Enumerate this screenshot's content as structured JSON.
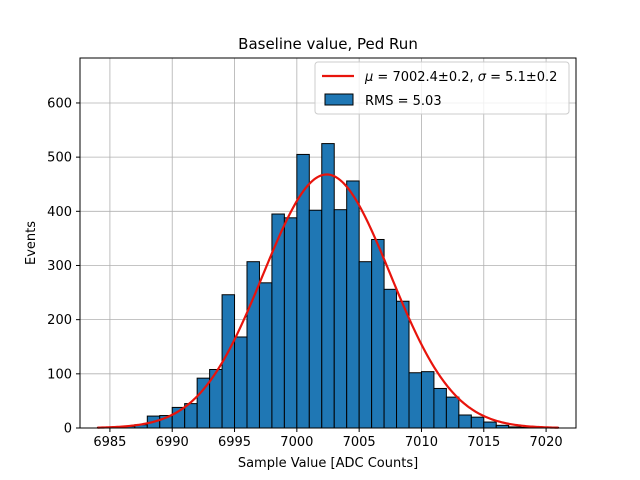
{
  "chart_data": {
    "type": "bar",
    "title": "Baseline value, Ped Run",
    "xlabel": "Sample Value [ADC Counts]",
    "ylabel": "Events",
    "xlim": [
      6982.6,
      7022.4
    ],
    "ylim": [
      0,
      683
    ],
    "xticks": [
      6985,
      6990,
      6995,
      7000,
      7005,
      7010,
      7015,
      7020
    ],
    "yticks": [
      0,
      100,
      200,
      300,
      400,
      500,
      600
    ],
    "grid": true,
    "legend_position": "top-right",
    "bar_color": "#1f77b4",
    "fit_color": "#e8140c",
    "bins": {
      "edges": [
        6984,
        6985,
        6986,
        6987,
        6988,
        6989,
        6990,
        6991,
        6992,
        6993,
        6994,
        6995,
        6996,
        6997,
        6998,
        6999,
        7000,
        7001,
        7002,
        7003,
        7004,
        7005,
        7006,
        7007,
        7008,
        7009,
        7010,
        7011,
        7012,
        7013,
        7014,
        7015,
        7016,
        7017,
        7018,
        7019,
        7020,
        7021
      ],
      "counts": [
        1,
        2,
        3,
        6,
        22,
        23,
        38,
        45,
        92,
        108,
        246,
        168,
        307,
        268,
        395,
        388,
        505,
        402,
        525,
        403,
        456,
        307,
        348,
        256,
        234,
        102,
        104,
        73,
        57,
        24,
        20,
        11,
        5,
        2,
        1,
        1,
        1
      ]
    },
    "fit": {
      "name": "$\\mu = 7002.4\\pm0.2$, $\\sigma = 5.1\\pm0.2$",
      "mu": 7002.4,
      "sigma": 5.1,
      "amplitude": 468
    },
    "legend": [
      {
        "label_prefix": "μ",
        "label_mid": " = 7002.4±0.2, ",
        "label_sigma": "σ",
        "label_suffix": " = 5.1±0.2"
      },
      {
        "label": "RMS = 5.03"
      }
    ]
  }
}
